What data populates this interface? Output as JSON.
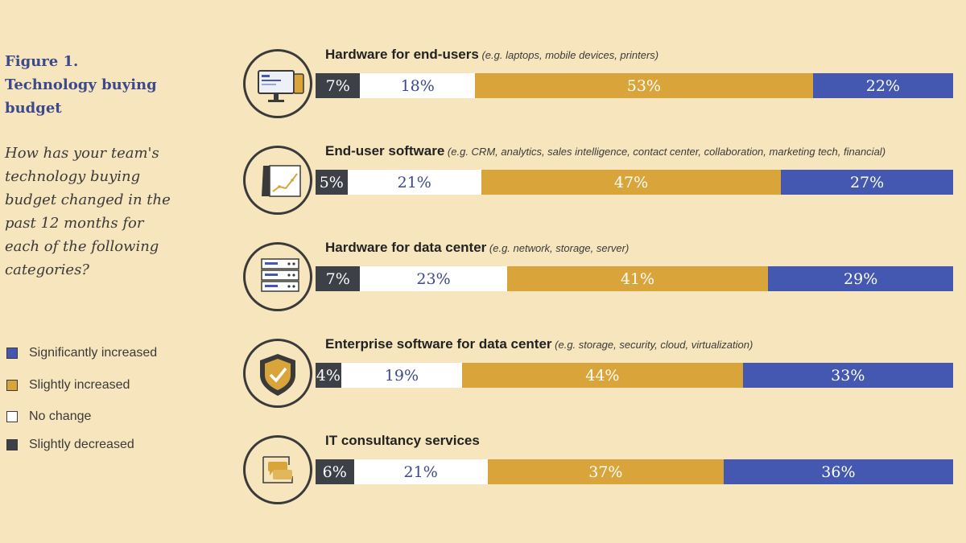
{
  "figure": {
    "title": "Figure 1. Technology buying budget",
    "question": "How has your team's technology buying budget changed in the past 12 months for each of the following categories?"
  },
  "legend": [
    {
      "label": "Significantly increased",
      "color": "#4457b1"
    },
    {
      "label": "Slightly increased",
      "color": "#d9a53a"
    },
    {
      "label": "No change",
      "color": "#ffffff"
    },
    {
      "label": "Slightly decreased",
      "color": "#3d4046"
    }
  ],
  "chart_data": {
    "type": "bar",
    "stacked": true,
    "orientation": "horizontal",
    "categories": [
      {
        "name": "Hardware for end-users",
        "note": "(e.g. laptops, mobile devices, printers)",
        "icon": "monitor-icon"
      },
      {
        "name": "End-user software",
        "note": "(e.g. CRM, analytics, sales intelligence, contact center, collaboration, marketing tech, financial)",
        "icon": "line-chart-icon"
      },
      {
        "name": "Hardware for data center",
        "note": "(e.g. network, storage, server)",
        "icon": "server-rack-icon"
      },
      {
        "name": "Enterprise software for data center",
        "note": "(e.g. storage, security, cloud, virtualization)",
        "icon": "shield-check-icon"
      },
      {
        "name": "IT consultancy services",
        "note": "",
        "icon": "chat-bubbles-icon"
      }
    ],
    "series": [
      {
        "name": "Slightly decreased",
        "color": "#3d4046",
        "text_color": "#ffffff",
        "values": [
          7,
          5,
          7,
          4,
          6
        ]
      },
      {
        "name": "No change",
        "color": "#ffffff",
        "text_color": "#3b4a8c",
        "values": [
          18,
          21,
          23,
          19,
          21
        ]
      },
      {
        "name": "Slightly increased",
        "color": "#d9a53a",
        "text_color": "#ffffff",
        "values": [
          53,
          47,
          41,
          44,
          37
        ]
      },
      {
        "name": "Significantly increased",
        "color": "#4457b1",
        "text_color": "#ffffff",
        "values": [
          22,
          27,
          29,
          33,
          36
        ]
      }
    ],
    "value_suffix": "%",
    "xlim": [
      0,
      100
    ]
  }
}
